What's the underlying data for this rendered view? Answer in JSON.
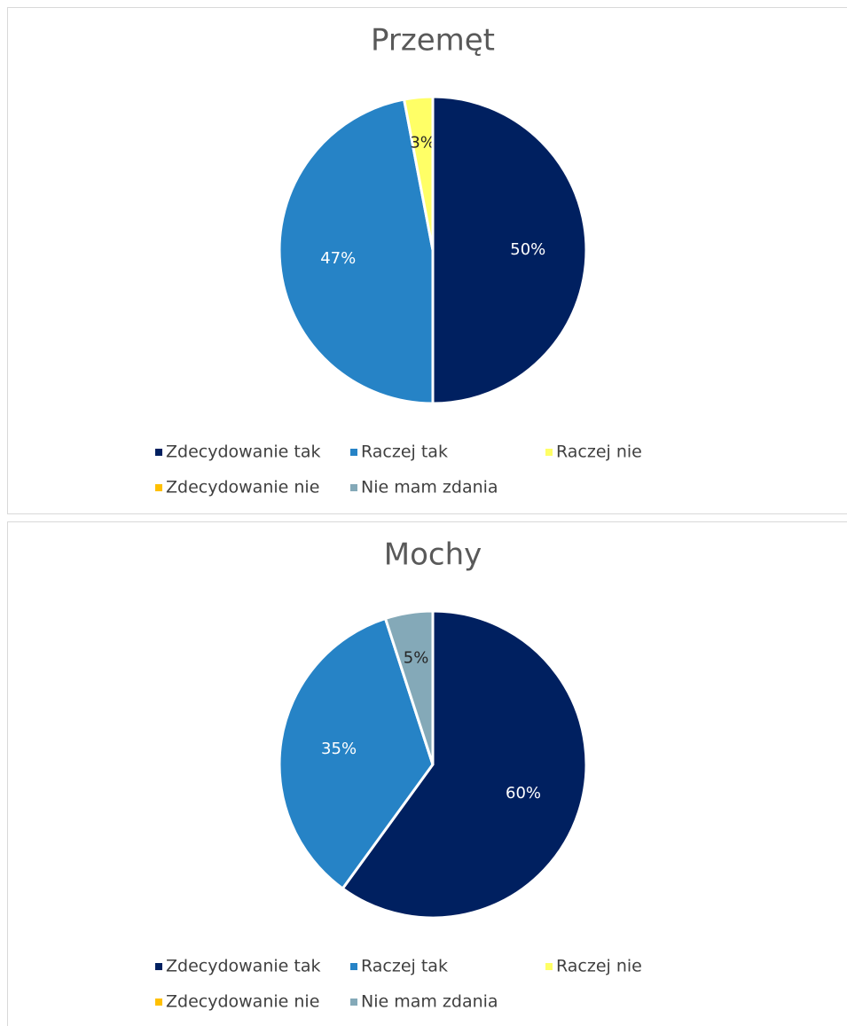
{
  "chart_data": [
    {
      "type": "pie",
      "title": "Przemęt",
      "categories": [
        "Zdecydowanie tak",
        "Raczej tak",
        "Raczej nie",
        "Zdecydowanie nie",
        "Nie mam zdania"
      ],
      "values": [
        50,
        47,
        3,
        0,
        0
      ],
      "value_labels": [
        "50%",
        "47%",
        "3%",
        null,
        null
      ],
      "colors": [
        "#002060",
        "#2683c6",
        "#ffff66",
        "#ffc000",
        "#84a9b8"
      ]
    },
    {
      "type": "pie",
      "title": "Mochy",
      "categories": [
        "Zdecydowanie tak",
        "Raczej tak",
        "Raczej nie",
        "Zdecydowanie nie",
        "Nie mam zdania"
      ],
      "values": [
        60,
        35,
        0,
        0,
        5
      ],
      "value_labels": [
        "60%",
        "35%",
        null,
        null,
        "5%"
      ],
      "colors": [
        "#002060",
        "#2683c6",
        "#ffff66",
        "#ffc000",
        "#84a9b8"
      ]
    }
  ]
}
